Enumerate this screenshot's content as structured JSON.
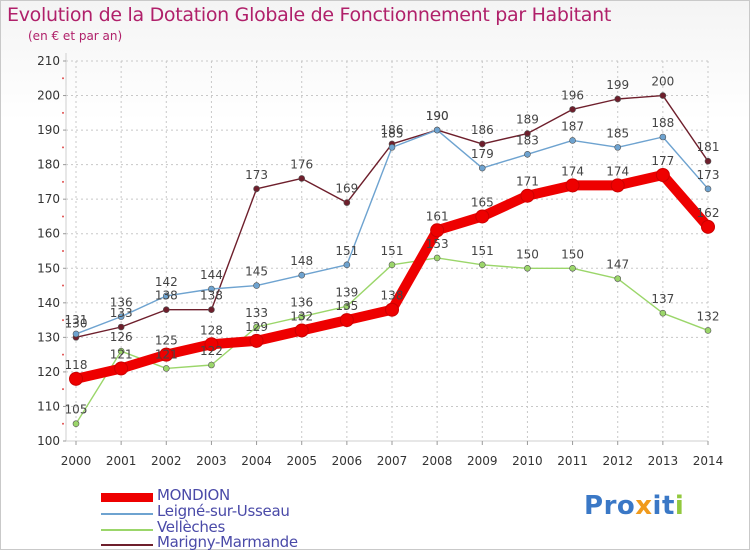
{
  "title": "Evolution de la Dotation Globale de Fonctionnement par Habitant",
  "subtitle": "(en € et par an)",
  "logo": {
    "text": "Proxiti",
    "letters": [
      "P",
      "r",
      "o",
      "x",
      "i",
      "t",
      "i"
    ],
    "colors": [
      "#3a78c6",
      "#3a78c6",
      "#3a78c6",
      "#f09a1c",
      "#3a78c6",
      "#3a78c6",
      "#92c83e"
    ]
  },
  "chart_data": {
    "type": "line",
    "title": "Evolution de la Dotation Globale de Fonctionnement par Habitant",
    "subtitle": "(en € et par an)",
    "x": [
      "2000",
      "2001",
      "2002",
      "2003",
      "2004",
      "2005",
      "2006",
      "2007",
      "2008",
      "2009",
      "2010",
      "2011",
      "2012",
      "2013",
      "2014"
    ],
    "ylim": [
      100,
      210
    ],
    "yticks": [
      100,
      110,
      120,
      130,
      140,
      150,
      160,
      170,
      180,
      190,
      200,
      210
    ],
    "legend_position": "bottom-left",
    "series": [
      {
        "name": "Marigny-Marmande",
        "color": "#6e1f2c",
        "values": [
          130,
          133,
          138,
          138,
          173,
          176,
          169,
          186,
          190,
          186,
          189,
          196,
          199,
          200,
          181
        ]
      },
      {
        "name": "Vellèches",
        "color": "#9bd66a",
        "values": [
          105,
          126,
          121,
          122,
          133,
          136,
          139,
          151,
          153,
          151,
          150,
          150,
          147,
          137,
          132
        ]
      },
      {
        "name": "Leigné-sur-Usseau",
        "color": "#6ea3d0",
        "values": [
          131,
          136,
          142,
          144,
          145,
          148,
          151,
          185,
          190,
          179,
          183,
          187,
          185,
          188,
          173
        ]
      },
      {
        "name": "MONDION",
        "color": "#ee0000",
        "values": [
          118,
          121,
          125,
          128,
          129,
          132,
          135,
          138,
          161,
          165,
          171,
          174,
          174,
          177,
          162
        ]
      }
    ],
    "legend_order": [
      "MONDION",
      "Leigné-sur-Usseau",
      "Vellèches",
      "Marigny-Marmande"
    ]
  }
}
